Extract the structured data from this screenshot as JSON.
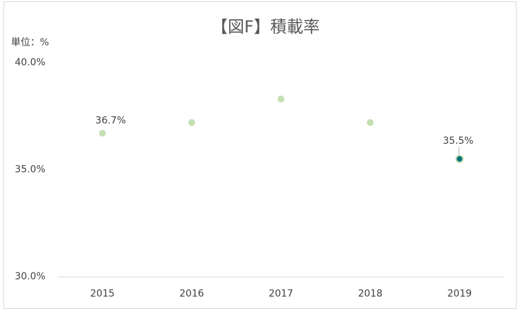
{
  "chart_data": {
    "type": "line",
    "title": "【図F】積載率",
    "y_unit_label": "単位：%",
    "categories": [
      "2015",
      "2016",
      "2017",
      "2018",
      "2019"
    ],
    "series": [
      {
        "color": "#c5e0b4",
        "values": [
          36.7,
          37.2,
          38.3,
          37.2,
          35.5
        ],
        "value_labels": [
          "36.7%",
          null,
          null,
          null,
          "35.5%"
        ]
      }
    ],
    "highlight_color": "#00707a",
    "ylim": [
      30,
      40
    ],
    "yticks": [
      {
        "value": 30,
        "label": "30.0%"
      },
      {
        "value": 35,
        "label": "35.0%"
      },
      {
        "value": 40,
        "label": "40.0%"
      }
    ],
    "grid": false
  }
}
